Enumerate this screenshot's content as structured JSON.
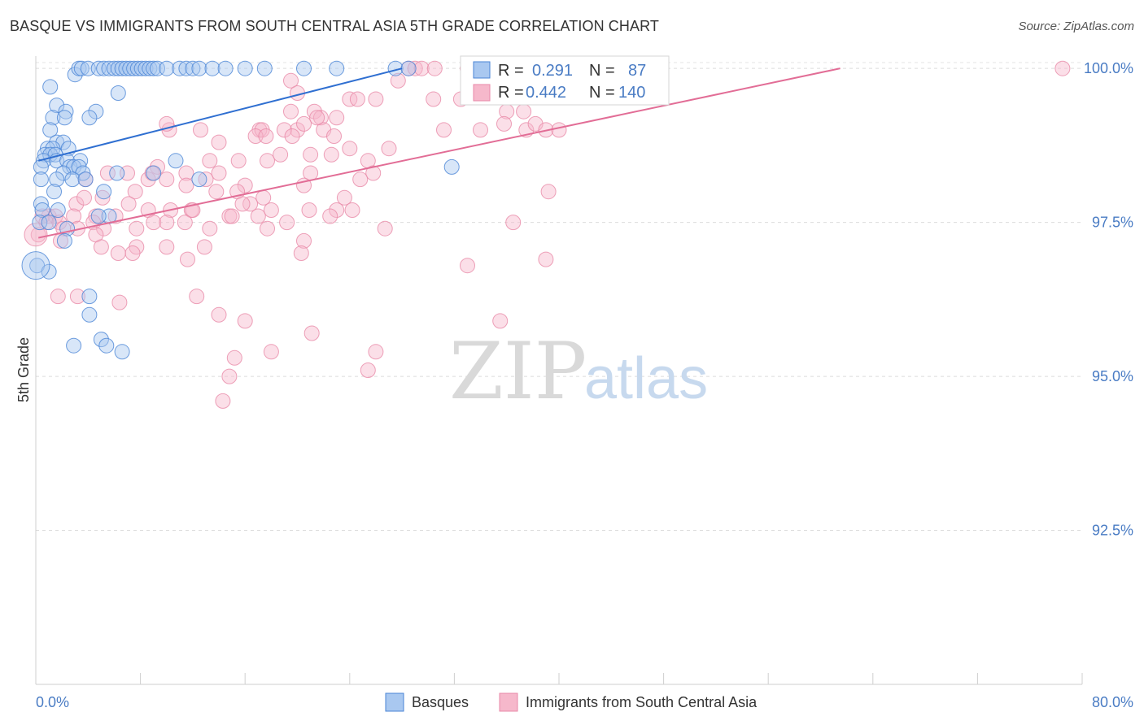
{
  "header": {
    "title": "BASQUE VS IMMIGRANTS FROM SOUTH CENTRAL ASIA 5TH GRADE CORRELATION CHART",
    "source": "Source: ZipAtlas.com"
  },
  "watermark": {
    "zip": "ZIP",
    "atlas": "atlas"
  },
  "colors": {
    "blue_fill": "#a9c8f0",
    "blue_stroke": "#4a84d6",
    "blue_line": "#2f6fd1",
    "pink_fill": "#f6b8cb",
    "pink_stroke": "#e889a8",
    "pink_line": "#e26d96",
    "value_text": "#4a7cc4"
  },
  "stats": [
    {
      "r_label": "R =",
      "r_value": "0.291",
      "n_label": "N =",
      "n_value": "87"
    },
    {
      "r_label": "R =",
      "r_value": "0.442",
      "n_label": "N =",
      "n_value": "140"
    }
  ],
  "chart_data": {
    "type": "scatter",
    "title": "BASQUE VS IMMIGRANTS FROM SOUTH CENTRAL ASIA 5TH GRADE CORRELATION CHART",
    "xlabel": "",
    "ylabel": "5th Grade",
    "xlim": [
      0,
      80
    ],
    "ylim": [
      90.0,
      100.2
    ],
    "x_tick_labels": [
      "0.0%",
      "80.0%"
    ],
    "y_ticks": [
      92.5,
      95.0,
      97.5,
      100.0
    ],
    "y_tick_labels": [
      "92.5%",
      "95.0%",
      "97.5%",
      "100.0%"
    ],
    "grid": true,
    "legend": [
      "Basques",
      "Immigrants from South Central Asia"
    ],
    "series": [
      {
        "name": "Basques",
        "r": 0.291,
        "n": 87,
        "trend": {
          "x": [
            0.2,
            28.0
          ],
          "y": [
            98.5,
            100.0
          ]
        },
        "points": [
          [
            3.0,
            99.9
          ],
          [
            3.3,
            100.0
          ],
          [
            3.5,
            100.0
          ],
          [
            4.0,
            100.0
          ],
          [
            4.8,
            100.0
          ],
          [
            5.2,
            100.0
          ],
          [
            5.6,
            100.0
          ],
          [
            6.0,
            100.0
          ],
          [
            6.3,
            100.0
          ],
          [
            6.6,
            100.0
          ],
          [
            6.9,
            100.0
          ],
          [
            7.2,
            100.0
          ],
          [
            7.5,
            100.0
          ],
          [
            7.8,
            100.0
          ],
          [
            8.1,
            100.0
          ],
          [
            8.4,
            100.0
          ],
          [
            8.7,
            100.0
          ],
          [
            9.0,
            100.0
          ],
          [
            9.3,
            100.0
          ],
          [
            10.0,
            100.0
          ],
          [
            11.0,
            100.0
          ],
          [
            11.5,
            100.0
          ],
          [
            12.0,
            100.0
          ],
          [
            12.5,
            100.0
          ],
          [
            13.5,
            100.0
          ],
          [
            14.5,
            100.0
          ],
          [
            16.0,
            100.0
          ],
          [
            17.5,
            100.0
          ],
          [
            20.5,
            100.0
          ],
          [
            23.0,
            100.0
          ],
          [
            27.5,
            100.0
          ],
          [
            28.5,
            100.0
          ],
          [
            1.1,
            99.7
          ],
          [
            6.3,
            99.6
          ],
          [
            1.6,
            99.4
          ],
          [
            2.3,
            99.3
          ],
          [
            4.6,
            99.3
          ],
          [
            1.3,
            99.2
          ],
          [
            2.2,
            99.2
          ],
          [
            4.1,
            99.2
          ],
          [
            1.1,
            99.0
          ],
          [
            1.6,
            98.8
          ],
          [
            2.1,
            98.8
          ],
          [
            0.9,
            98.7
          ],
          [
            1.3,
            98.7
          ],
          [
            2.5,
            98.7
          ],
          [
            0.7,
            98.6
          ],
          [
            1.1,
            98.6
          ],
          [
            1.5,
            98.6
          ],
          [
            0.6,
            98.5
          ],
          [
            1.6,
            98.5
          ],
          [
            2.4,
            98.5
          ],
          [
            3.4,
            98.5
          ],
          [
            10.7,
            98.5
          ],
          [
            31.8,
            98.4
          ],
          [
            0.4,
            98.4
          ],
          [
            2.6,
            98.4
          ],
          [
            2.9,
            98.4
          ],
          [
            3.3,
            98.4
          ],
          [
            2.1,
            98.3
          ],
          [
            3.6,
            98.3
          ],
          [
            6.2,
            98.3
          ],
          [
            9.0,
            98.3
          ],
          [
            12.5,
            98.2
          ],
          [
            0.4,
            98.2
          ],
          [
            1.6,
            98.2
          ],
          [
            2.8,
            98.2
          ],
          [
            3.8,
            98.2
          ],
          [
            1.4,
            98.0
          ],
          [
            5.2,
            98.0
          ],
          [
            0.4,
            97.8
          ],
          [
            0.5,
            97.7
          ],
          [
            1.7,
            97.7
          ],
          [
            5.6,
            97.6
          ],
          [
            4.8,
            97.6
          ],
          [
            0.3,
            97.5
          ],
          [
            1.0,
            97.5
          ],
          [
            2.4,
            97.4
          ],
          [
            2.2,
            97.2
          ],
          [
            0.1,
            96.8
          ],
          [
            1.0,
            96.7
          ],
          [
            4.1,
            96.3
          ],
          [
            4.1,
            96.0
          ],
          [
            5.0,
            95.6
          ],
          [
            2.9,
            95.5
          ],
          [
            5.4,
            95.5
          ],
          [
            6.6,
            95.4
          ]
        ]
      },
      {
        "name": "Immigrants from South Central Asia",
        "r": 0.442,
        "n": 140,
        "trend": {
          "x": [
            0.2,
            61.5
          ],
          "y": [
            97.25,
            100.0
          ]
        },
        "points": [
          [
            28.5,
            100.0
          ],
          [
            29.0,
            100.0
          ],
          [
            29.5,
            100.0
          ],
          [
            30.5,
            100.0
          ],
          [
            33.0,
            100.0
          ],
          [
            35.0,
            100.0
          ],
          [
            36.0,
            100.0
          ],
          [
            38.0,
            100.0
          ],
          [
            40.5,
            100.0
          ],
          [
            78.5,
            100.0
          ],
          [
            19.5,
            99.8
          ],
          [
            27.7,
            99.8
          ],
          [
            20.0,
            99.6
          ],
          [
            30.4,
            99.5
          ],
          [
            32.5,
            99.5
          ],
          [
            26.0,
            99.5
          ],
          [
            24.0,
            99.5
          ],
          [
            24.6,
            99.5
          ],
          [
            19.5,
            99.3
          ],
          [
            21.3,
            99.3
          ],
          [
            21.8,
            99.2
          ],
          [
            20.0,
            99.0
          ],
          [
            22.0,
            99.0
          ],
          [
            23.0,
            99.2
          ],
          [
            17.1,
            99.0
          ],
          [
            17.3,
            99.0
          ],
          [
            19.0,
            99.0
          ],
          [
            20.5,
            99.1
          ],
          [
            21.5,
            99.2
          ],
          [
            22.8,
            98.9
          ],
          [
            19.6,
            98.9
          ],
          [
            16.8,
            98.9
          ],
          [
            31.2,
            99.0
          ],
          [
            34.0,
            99.0
          ],
          [
            36.0,
            99.3
          ],
          [
            37.3,
            99.3
          ],
          [
            35.8,
            99.1
          ],
          [
            37.5,
            99.0
          ],
          [
            38.2,
            99.1
          ],
          [
            39.0,
            99.0
          ],
          [
            40.0,
            99.0
          ],
          [
            14.0,
            98.8
          ],
          [
            10.2,
            99.0
          ],
          [
            10.0,
            99.1
          ],
          [
            12.6,
            99.0
          ],
          [
            17.6,
            98.9
          ],
          [
            24.0,
            98.7
          ],
          [
            27.0,
            98.7
          ],
          [
            21.0,
            98.6
          ],
          [
            22.6,
            98.6
          ],
          [
            18.7,
            98.6
          ],
          [
            25.4,
            98.5
          ],
          [
            15.5,
            98.5
          ],
          [
            17.7,
            98.5
          ],
          [
            13.3,
            98.5
          ],
          [
            14.0,
            98.3
          ],
          [
            11.5,
            98.3
          ],
          [
            9.3,
            98.4
          ],
          [
            5.5,
            98.3
          ],
          [
            7.0,
            98.3
          ],
          [
            21.0,
            98.3
          ],
          [
            25.8,
            98.3
          ],
          [
            13.0,
            98.2
          ],
          [
            8.6,
            98.2
          ],
          [
            10.0,
            98.2
          ],
          [
            3.8,
            98.2
          ],
          [
            8.9,
            98.3
          ],
          [
            24.8,
            98.2
          ],
          [
            20.5,
            98.1
          ],
          [
            16.0,
            98.1
          ],
          [
            11.5,
            98.1
          ],
          [
            13.8,
            98.0
          ],
          [
            15.4,
            98.0
          ],
          [
            7.6,
            98.0
          ],
          [
            5.1,
            97.9
          ],
          [
            23.6,
            97.9
          ],
          [
            17.4,
            97.9
          ],
          [
            39.2,
            98.0
          ],
          [
            16.4,
            97.8
          ],
          [
            18.0,
            97.7
          ],
          [
            20.9,
            97.7
          ],
          [
            7.1,
            97.8
          ],
          [
            3.1,
            97.8
          ],
          [
            3.7,
            97.9
          ],
          [
            15.8,
            97.8
          ],
          [
            11.9,
            97.7
          ],
          [
            12.0,
            97.7
          ],
          [
            14.8,
            97.6
          ],
          [
            8.6,
            97.7
          ],
          [
            10.3,
            97.7
          ],
          [
            6.1,
            97.6
          ],
          [
            2.9,
            97.6
          ],
          [
            4.6,
            97.6
          ],
          [
            1.0,
            97.6
          ],
          [
            24.2,
            97.7
          ],
          [
            23.0,
            97.7
          ],
          [
            22.5,
            97.6
          ],
          [
            17.0,
            97.6
          ],
          [
            15.0,
            97.6
          ],
          [
            9.0,
            97.5
          ],
          [
            10.0,
            97.5
          ],
          [
            11.4,
            97.5
          ],
          [
            19.2,
            97.5
          ],
          [
            0.5,
            97.6
          ],
          [
            1.5,
            97.6
          ],
          [
            0.8,
            97.5
          ],
          [
            1.8,
            97.5
          ],
          [
            4.4,
            97.5
          ],
          [
            5.2,
            97.4
          ],
          [
            3.2,
            97.4
          ],
          [
            2.1,
            97.4
          ],
          [
            7.7,
            97.4
          ],
          [
            13.3,
            97.4
          ],
          [
            17.7,
            97.4
          ],
          [
            26.7,
            97.4
          ],
          [
            36.5,
            97.5
          ],
          [
            0.2,
            97.3
          ],
          [
            4.6,
            97.3
          ],
          [
            20.5,
            97.2
          ],
          [
            1.9,
            97.2
          ],
          [
            7.7,
            97.1
          ],
          [
            10.0,
            97.1
          ],
          [
            7.4,
            97.0
          ],
          [
            12.9,
            97.1
          ],
          [
            5.0,
            97.1
          ],
          [
            6.3,
            97.0
          ],
          [
            11.6,
            96.9
          ],
          [
            20.3,
            97.0
          ],
          [
            39.0,
            96.9
          ],
          [
            33.0,
            96.8
          ],
          [
            1.7,
            96.3
          ],
          [
            3.2,
            96.3
          ],
          [
            12.3,
            96.3
          ],
          [
            6.4,
            96.2
          ],
          [
            35.5,
            95.9
          ],
          [
            14.0,
            96.0
          ],
          [
            16.0,
            95.9
          ],
          [
            21.1,
            95.7
          ],
          [
            18.0,
            95.4
          ],
          [
            26.0,
            95.4
          ],
          [
            15.2,
            95.3
          ],
          [
            14.8,
            95.0
          ],
          [
            25.4,
            95.1
          ],
          [
            14.3,
            94.6
          ]
        ]
      }
    ]
  },
  "legend": {
    "basques": "Basques",
    "immigrants": "Immigrants from South Central Asia"
  }
}
